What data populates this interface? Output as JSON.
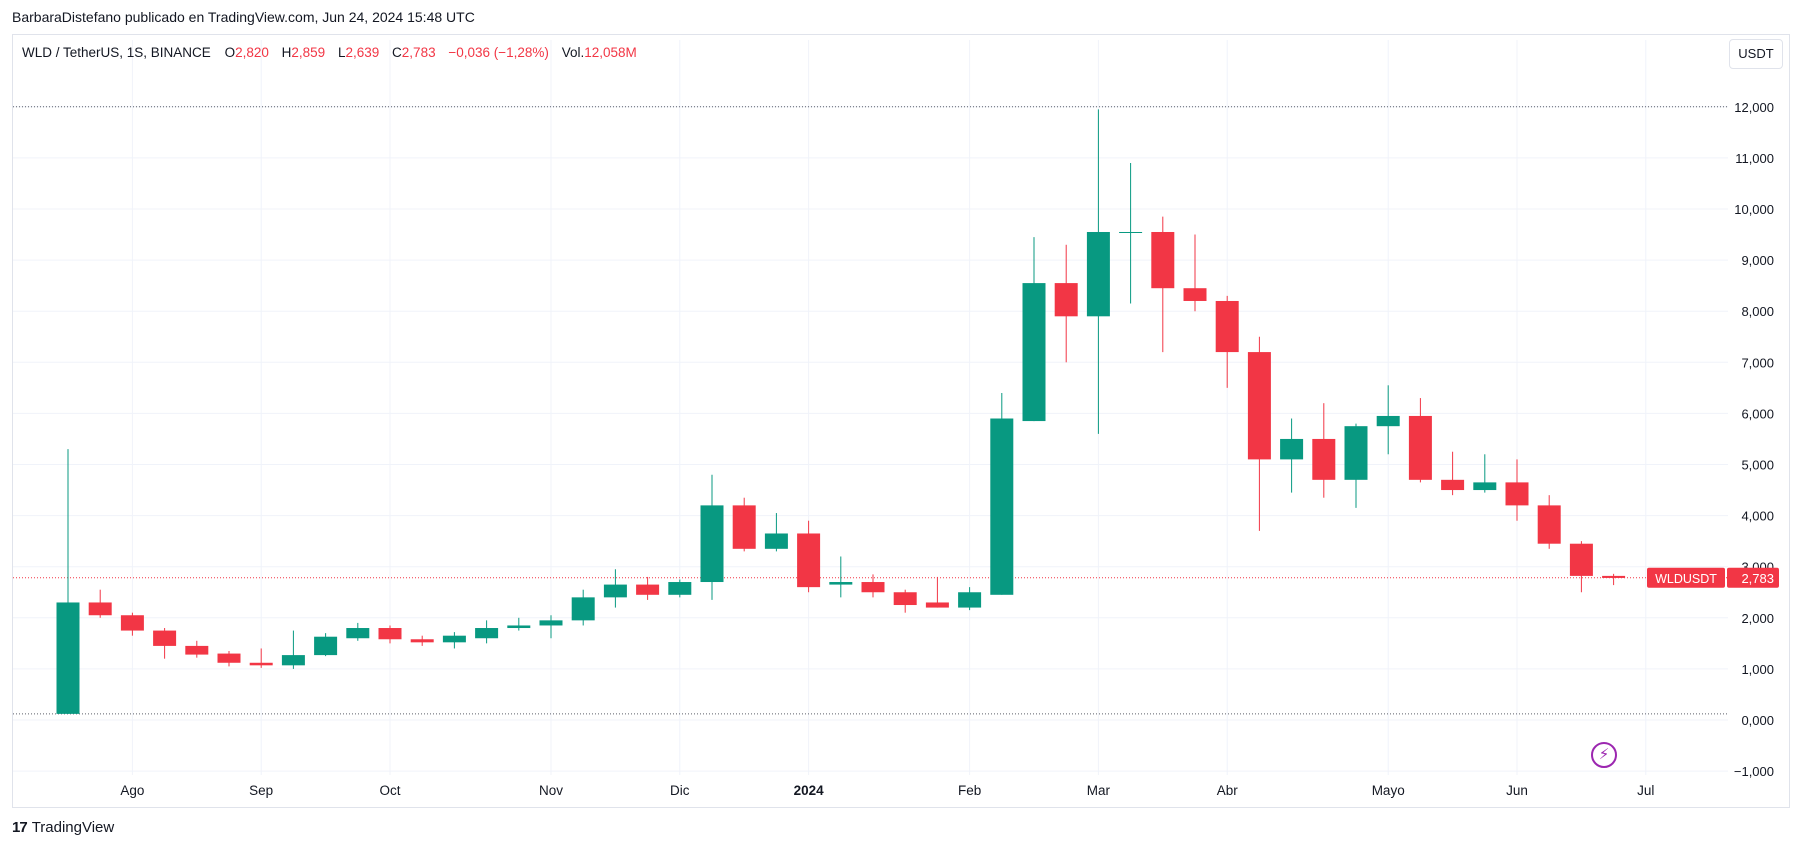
{
  "header": {
    "publisher_line": "BarbaraDistefano publicado en TradingView.com, Jun 24, 2024 15:48 UTC"
  },
  "legend": {
    "symbol": "WLD / TetherUS, 1S, BINANCE",
    "open_label": "O",
    "open_value": "2,820",
    "high_label": "H",
    "high_value": "2,859",
    "low_label": "L",
    "low_value": "2,639",
    "close_label": "C",
    "close_value": "2,783",
    "change": "−0,036 (−1,28%)",
    "volume_label": "Vol.",
    "volume_value": "12,058M"
  },
  "currency_button": "USDT",
  "price_tag": {
    "symbol": "WLDUSDT",
    "price": "2,783"
  },
  "footer": {
    "brand": "TradingView"
  },
  "colors": {
    "up": "#089981",
    "down": "#f23645",
    "grid": "#f0f3fa",
    "text": "#131722"
  },
  "chart_data": {
    "type": "candlestick",
    "yticks": [
      12,
      11,
      10,
      9,
      8,
      7,
      6,
      5,
      4,
      3,
      2,
      1,
      0,
      -1
    ],
    "ytick_labels": [
      "12,000",
      "11,000",
      "10,000",
      "9,000",
      "8,000",
      "7,000",
      "6,000",
      "5,000",
      "4,000",
      "3,000",
      "2,000",
      "1,000",
      "0,000",
      "−1,000"
    ],
    "xticks": [
      {
        "label": "Ago",
        "week": 2
      },
      {
        "label": "Sep",
        "week": 6
      },
      {
        "label": "Oct",
        "week": 10
      },
      {
        "label": "Nov",
        "week": 15
      },
      {
        "label": "Dic",
        "week": 19
      },
      {
        "label": "2024",
        "week": 23,
        "bold": true
      },
      {
        "label": "Feb",
        "week": 28
      },
      {
        "label": "Mar",
        "week": 32
      },
      {
        "label": "Abr",
        "week": 36
      },
      {
        "label": "Mayo",
        "week": 41
      },
      {
        "label": "Jun",
        "week": 45
      },
      {
        "label": "Jul",
        "week": 49
      }
    ],
    "reference_lines": [
      12.0,
      0.12
    ],
    "last_price": 2.783,
    "candles": [
      {
        "o": 0.12,
        "h": 5.3,
        "l": 0.12,
        "c": 2.3
      },
      {
        "o": 2.3,
        "h": 2.55,
        "l": 2.0,
        "c": 2.05
      },
      {
        "o": 2.05,
        "h": 2.1,
        "l": 1.65,
        "c": 1.75
      },
      {
        "o": 1.75,
        "h": 1.8,
        "l": 1.2,
        "c": 1.45
      },
      {
        "o": 1.45,
        "h": 1.55,
        "l": 1.22,
        "c": 1.28
      },
      {
        "o": 1.3,
        "h": 1.35,
        "l": 1.05,
        "c": 1.12
      },
      {
        "o": 1.12,
        "h": 1.4,
        "l": 1.02,
        "c": 1.07
      },
      {
        "o": 1.07,
        "h": 1.75,
        "l": 1.0,
        "c": 1.27
      },
      {
        "o": 1.27,
        "h": 1.7,
        "l": 1.25,
        "c": 1.63
      },
      {
        "o": 1.6,
        "h": 1.9,
        "l": 1.55,
        "c": 1.8
      },
      {
        "o": 1.8,
        "h": 1.85,
        "l": 1.5,
        "c": 1.58
      },
      {
        "o": 1.58,
        "h": 1.65,
        "l": 1.45,
        "c": 1.52
      },
      {
        "o": 1.52,
        "h": 1.72,
        "l": 1.4,
        "c": 1.65
      },
      {
        "o": 1.6,
        "h": 1.95,
        "l": 1.5,
        "c": 1.8
      },
      {
        "o": 1.8,
        "h": 2.0,
        "l": 1.75,
        "c": 1.85
      },
      {
        "o": 1.85,
        "h": 2.05,
        "l": 1.6,
        "c": 1.95
      },
      {
        "o": 1.95,
        "h": 2.55,
        "l": 1.85,
        "c": 2.4
      },
      {
        "o": 2.4,
        "h": 2.95,
        "l": 2.2,
        "c": 2.65
      },
      {
        "o": 2.65,
        "h": 2.8,
        "l": 2.35,
        "c": 2.45
      },
      {
        "o": 2.45,
        "h": 2.75,
        "l": 2.4,
        "c": 2.7
      },
      {
        "o": 2.7,
        "h": 4.8,
        "l": 2.35,
        "c": 4.2
      },
      {
        "o": 4.2,
        "h": 4.35,
        "l": 3.3,
        "c": 3.35
      },
      {
        "o": 3.35,
        "h": 4.05,
        "l": 3.3,
        "c": 3.65
      },
      {
        "o": 3.65,
        "h": 3.9,
        "l": 2.5,
        "c": 2.6
      },
      {
        "o": 2.65,
        "h": 3.2,
        "l": 2.4,
        "c": 2.7
      },
      {
        "o": 2.7,
        "h": 2.85,
        "l": 2.4,
        "c": 2.5
      },
      {
        "o": 2.5,
        "h": 2.55,
        "l": 2.1,
        "c": 2.25
      },
      {
        "o": 2.3,
        "h": 2.8,
        "l": 2.2,
        "c": 2.2
      },
      {
        "o": 2.2,
        "h": 2.6,
        "l": 2.15,
        "c": 2.5
      },
      {
        "o": 2.45,
        "h": 6.4,
        "l": 2.45,
        "c": 5.9
      },
      {
        "o": 5.85,
        "h": 9.45,
        "l": 5.85,
        "c": 8.55
      },
      {
        "o": 8.55,
        "h": 9.3,
        "l": 7.0,
        "c": 7.9
      },
      {
        "o": 7.9,
        "h": 11.95,
        "l": 5.6,
        "c": 9.55
      },
      {
        "o": 9.55,
        "h": 10.9,
        "l": 8.15,
        "c": 9.55
      },
      {
        "o": 9.55,
        "h": 9.85,
        "l": 7.2,
        "c": 8.45
      },
      {
        "o": 8.45,
        "h": 9.5,
        "l": 8.0,
        "c": 8.2
      },
      {
        "o": 8.2,
        "h": 8.3,
        "l": 6.5,
        "c": 7.2
      },
      {
        "o": 7.2,
        "h": 7.5,
        "l": 3.7,
        "c": 5.1
      },
      {
        "o": 5.1,
        "h": 5.9,
        "l": 4.45,
        "c": 5.5
      },
      {
        "o": 5.5,
        "h": 6.2,
        "l": 4.35,
        "c": 4.7
      },
      {
        "o": 4.7,
        "h": 5.8,
        "l": 4.15,
        "c": 5.75
      },
      {
        "o": 5.75,
        "h": 6.55,
        "l": 5.2,
        "c": 5.95
      },
      {
        "o": 5.95,
        "h": 6.3,
        "l": 4.65,
        "c": 4.7
      },
      {
        "o": 4.7,
        "h": 5.25,
        "l": 4.4,
        "c": 4.5
      },
      {
        "o": 4.5,
        "h": 5.2,
        "l": 4.45,
        "c": 4.65
      },
      {
        "o": 4.65,
        "h": 5.1,
        "l": 3.9,
        "c": 4.2
      },
      {
        "o": 4.2,
        "h": 4.4,
        "l": 3.35,
        "c": 3.45
      },
      {
        "o": 3.45,
        "h": 3.5,
        "l": 2.5,
        "c": 2.82
      },
      {
        "o": 2.82,
        "h": 2.86,
        "l": 2.64,
        "c": 2.78
      }
    ]
  }
}
